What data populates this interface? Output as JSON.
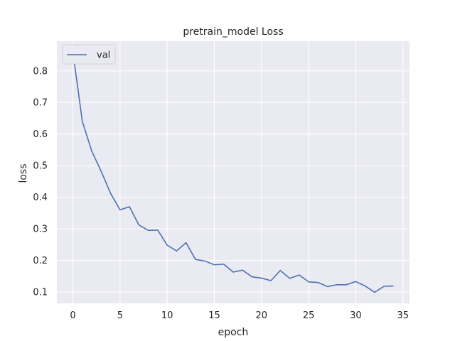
{
  "chart_data": {
    "type": "line",
    "title": "pretrain_model Loss",
    "xlabel": "epoch",
    "ylabel": "loss",
    "xlim": [
      -1.7,
      35.7
    ],
    "ylim": [
      0.064,
      0.894
    ],
    "xticks": [
      0,
      5,
      10,
      15,
      20,
      25,
      30,
      35
    ],
    "yticks": [
      0.1,
      0.2,
      0.3,
      0.4,
      0.5,
      0.6,
      0.7,
      0.8
    ],
    "ytick_labels": [
      "0.1",
      "0.2",
      "0.3",
      "0.4",
      "0.5",
      "0.6",
      "0.7",
      "0.8"
    ],
    "grid": true,
    "legend_position": "top-left",
    "series": [
      {
        "name": "val",
        "color": "#4c72b0",
        "x": [
          0,
          1,
          2,
          3,
          4,
          5,
          6,
          7,
          8,
          9,
          10,
          11,
          12,
          13,
          14,
          15,
          16,
          17,
          18,
          19,
          20,
          21,
          22,
          23,
          24,
          25,
          26,
          27,
          28,
          29,
          30,
          31,
          32,
          33,
          34
        ],
        "y": [
          0.86,
          0.64,
          0.546,
          0.482,
          0.412,
          0.36,
          0.37,
          0.312,
          0.295,
          0.296,
          0.248,
          0.23,
          0.256,
          0.203,
          0.198,
          0.186,
          0.188,
          0.163,
          0.169,
          0.148,
          0.144,
          0.136,
          0.168,
          0.143,
          0.154,
          0.132,
          0.13,
          0.117,
          0.123,
          0.123,
          0.133,
          0.119,
          0.099,
          0.118,
          0.119
        ]
      }
    ]
  }
}
